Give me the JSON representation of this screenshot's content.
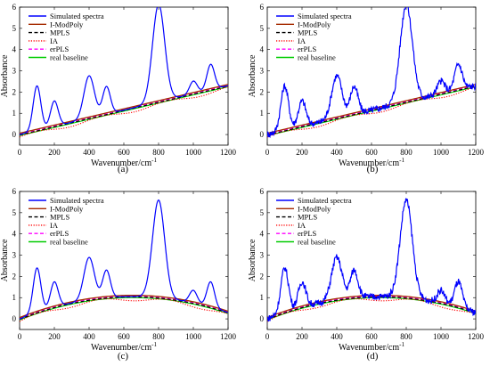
{
  "chart_data": [
    {
      "type": "line",
      "panel_label": "(a)",
      "xlabel": "Wavenumber/cm",
      "xlabel_sup": "-1",
      "ylabel": "Absorbance",
      "xlim": [
        0,
        1200
      ],
      "ylim": [
        -0.5,
        6
      ],
      "xticks": [
        0,
        200,
        400,
        600,
        800,
        1000,
        1200
      ],
      "yticks": [
        0,
        1,
        2,
        3,
        4,
        5,
        6
      ],
      "legend_position": "top-left",
      "baseline_shape": "linear",
      "noisy": false,
      "series": [
        {
          "name": "Simulated spectra",
          "color": "#0000ff",
          "dash": "solid"
        },
        {
          "name": "I-ModPoly",
          "color": "#a52a00",
          "dash": "solid"
        },
        {
          "name": "MPLS",
          "color": "#000000",
          "dash": "dashed"
        },
        {
          "name": "IA",
          "color": "#ff0000",
          "dash": "dotted"
        },
        {
          "name": "erPLS",
          "color": "#ff00ff",
          "dash": "dashed"
        },
        {
          "name": "real baseline",
          "color": "#00cc00",
          "dash": "solid"
        }
      ],
      "peaks": [
        {
          "x": 100,
          "height": 2.1
        },
        {
          "x": 200,
          "height": 1.2
        },
        {
          "x": 400,
          "height": 2.0
        },
        {
          "x": 500,
          "height": 1.3
        },
        {
          "x": 800,
          "height": 4.6
        },
        {
          "x": 1000,
          "height": 0.6
        },
        {
          "x": 1100,
          "height": 1.2
        }
      ]
    },
    {
      "type": "line",
      "panel_label": "(b)",
      "xlabel": "Wavenumber/cm",
      "xlabel_sup": "-1",
      "ylabel": "Absorbance",
      "xlim": [
        0,
        1200
      ],
      "ylim": [
        -0.5,
        6
      ],
      "xticks": [
        0,
        200,
        400,
        600,
        800,
        1000,
        1200
      ],
      "yticks": [
        0,
        1,
        2,
        3,
        4,
        5,
        6
      ],
      "legend_position": "top-left",
      "baseline_shape": "linear",
      "noisy": true,
      "series": [
        {
          "name": "Simulated spectra",
          "color": "#0000ff",
          "dash": "solid"
        },
        {
          "name": "I-ModPoly",
          "color": "#a52a00",
          "dash": "solid"
        },
        {
          "name": "MPLS",
          "color": "#000000",
          "dash": "dashed"
        },
        {
          "name": "IA",
          "color": "#ff0000",
          "dash": "dotted"
        },
        {
          "name": "erPLS",
          "color": "#ff00ff",
          "dash": "dashed"
        },
        {
          "name": "real baseline",
          "color": "#00cc00",
          "dash": "solid"
        }
      ],
      "peaks": [
        {
          "x": 100,
          "height": 2.1
        },
        {
          "x": 200,
          "height": 1.2
        },
        {
          "x": 400,
          "height": 2.0
        },
        {
          "x": 500,
          "height": 1.3
        },
        {
          "x": 800,
          "height": 4.6
        },
        {
          "x": 1000,
          "height": 0.6
        },
        {
          "x": 1100,
          "height": 1.2
        }
      ]
    },
    {
      "type": "line",
      "panel_label": "(c)",
      "xlabel": "Wavenumber/cm",
      "xlabel_sup": "-1",
      "ylabel": "Absorbance",
      "xlim": [
        0,
        1200
      ],
      "ylim": [
        -0.5,
        6
      ],
      "xticks": [
        0,
        200,
        400,
        600,
        800,
        1000,
        1200
      ],
      "yticks": [
        0,
        1,
        2,
        3,
        4,
        5,
        6
      ],
      "legend_position": "top-left",
      "baseline_shape": "arch",
      "noisy": false,
      "series": [
        {
          "name": "Simulated spectra",
          "color": "#0000ff",
          "dash": "solid"
        },
        {
          "name": "I-ModPoly",
          "color": "#a52a00",
          "dash": "solid"
        },
        {
          "name": "MPLS",
          "color": "#000000",
          "dash": "dashed"
        },
        {
          "name": "IA",
          "color": "#ff0000",
          "dash": "dotted"
        },
        {
          "name": "erPLS",
          "color": "#ff00ff",
          "dash": "dashed"
        },
        {
          "name": "real baseline",
          "color": "#00cc00",
          "dash": "solid"
        }
      ],
      "peaks": [
        {
          "x": 100,
          "height": 2.1
        },
        {
          "x": 200,
          "height": 1.2
        },
        {
          "x": 400,
          "height": 2.0
        },
        {
          "x": 500,
          "height": 1.3
        },
        {
          "x": 800,
          "height": 4.6
        },
        {
          "x": 1000,
          "height": 0.6
        },
        {
          "x": 1100,
          "height": 1.2
        }
      ]
    },
    {
      "type": "line",
      "panel_label": "(d)",
      "xlabel": "Wavenumber/cm",
      "xlabel_sup": "-1",
      "ylabel": "Absorbance",
      "xlim": [
        0,
        1200
      ],
      "ylim": [
        -0.5,
        6
      ],
      "xticks": [
        0,
        200,
        400,
        600,
        800,
        1000,
        1200
      ],
      "yticks": [
        0,
        1,
        2,
        3,
        4,
        5,
        6
      ],
      "legend_position": "top-left",
      "baseline_shape": "arch",
      "noisy": true,
      "series": [
        {
          "name": "Simulated spectra",
          "color": "#0000ff",
          "dash": "solid"
        },
        {
          "name": "I-ModPoly",
          "color": "#a52a00",
          "dash": "solid"
        },
        {
          "name": "MPLS",
          "color": "#000000",
          "dash": "dashed"
        },
        {
          "name": "IA",
          "color": "#ff0000",
          "dash": "dotted"
        },
        {
          "name": "erPLS",
          "color": "#ff00ff",
          "dash": "dashed"
        },
        {
          "name": "real baseline",
          "color": "#00cc00",
          "dash": "solid"
        }
      ],
      "peaks": [
        {
          "x": 100,
          "height": 2.1
        },
        {
          "x": 200,
          "height": 1.2
        },
        {
          "x": 400,
          "height": 2.0
        },
        {
          "x": 500,
          "height": 1.3
        },
        {
          "x": 800,
          "height": 4.6
        },
        {
          "x": 1000,
          "height": 0.6
        },
        {
          "x": 1100,
          "height": 1.2
        }
      ]
    }
  ]
}
